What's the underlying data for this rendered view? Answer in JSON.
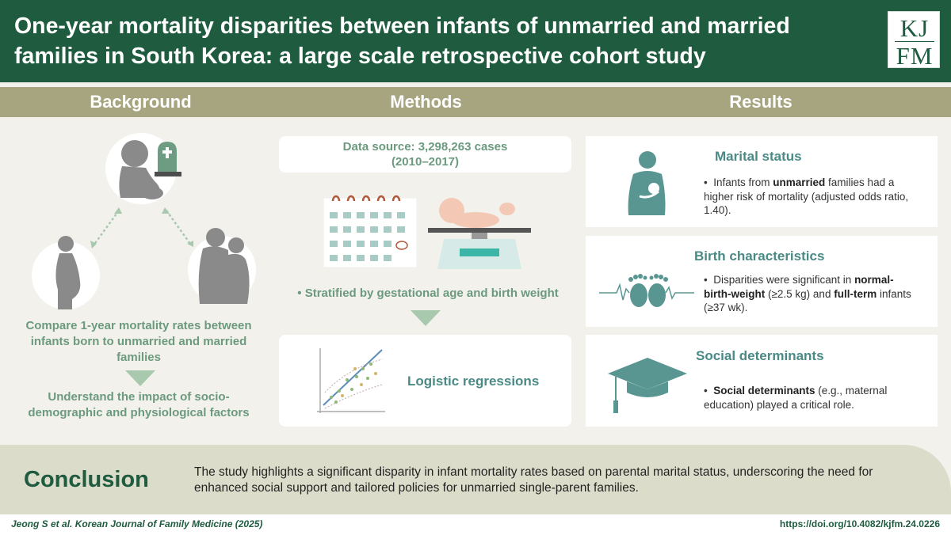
{
  "header": {
    "title": "One-year mortality disparities between infants of unmarried and married families in South Korea: a large scale retrospective cohort study",
    "logo_line1": "KJ",
    "logo_line2": "FM"
  },
  "sections": {
    "background": "Background",
    "methods": "Methods",
    "results": "Results"
  },
  "background": {
    "aim1": "Compare 1-year mortality rates between infants born to unmarried and married families",
    "aim2": "Understand the impact of socio-demographic and physiological factors",
    "icons": [
      "infant-icon",
      "tombstone-icon",
      "pregnant-woman-icon",
      "couple-icon"
    ]
  },
  "methods": {
    "data_source_line1": "Data source: 3,298,263 cases",
    "data_source_line2": "(2010–2017)",
    "stratified": "Stratified by gestational age and birth weight",
    "analysis": "Logistic regressions"
  },
  "results": {
    "marital": {
      "heading": "Marital status",
      "pre": "Infants from ",
      "bold1": "unmarried",
      "post": " families had a higher risk of mortality (adjusted odds ratio, 1.40)."
    },
    "birth": {
      "heading": "Birth characteristics",
      "pre": "Disparities were significant in ",
      "bold1": "normal-birth-weight",
      "mid": " (≥2.5 kg) and ",
      "bold2": "full-term",
      "post": " infants (≥37 wk)."
    },
    "social": {
      "heading": "Social determinants",
      "bold1": "Social determinants",
      "post": " (e.g., maternal education) played a critical role."
    }
  },
  "conclusion": {
    "heading": "Conclusion",
    "text": "The study highlights a significant disparity in infant mortality rates based on parental marital status, underscoring the need for enhanced social support and tailored policies for unmarried single-parent families."
  },
  "footer": {
    "citation": "Jeong S et al. Korean Journal of  Family Medicine (2025)",
    "doi": "https://doi.org/10.4082/kjfm.24.0226"
  },
  "colors": {
    "header": "#1e5b3f",
    "band": "#a7a580",
    "accent": "#4a8a85",
    "aim_text": "#6b9a7e"
  }
}
